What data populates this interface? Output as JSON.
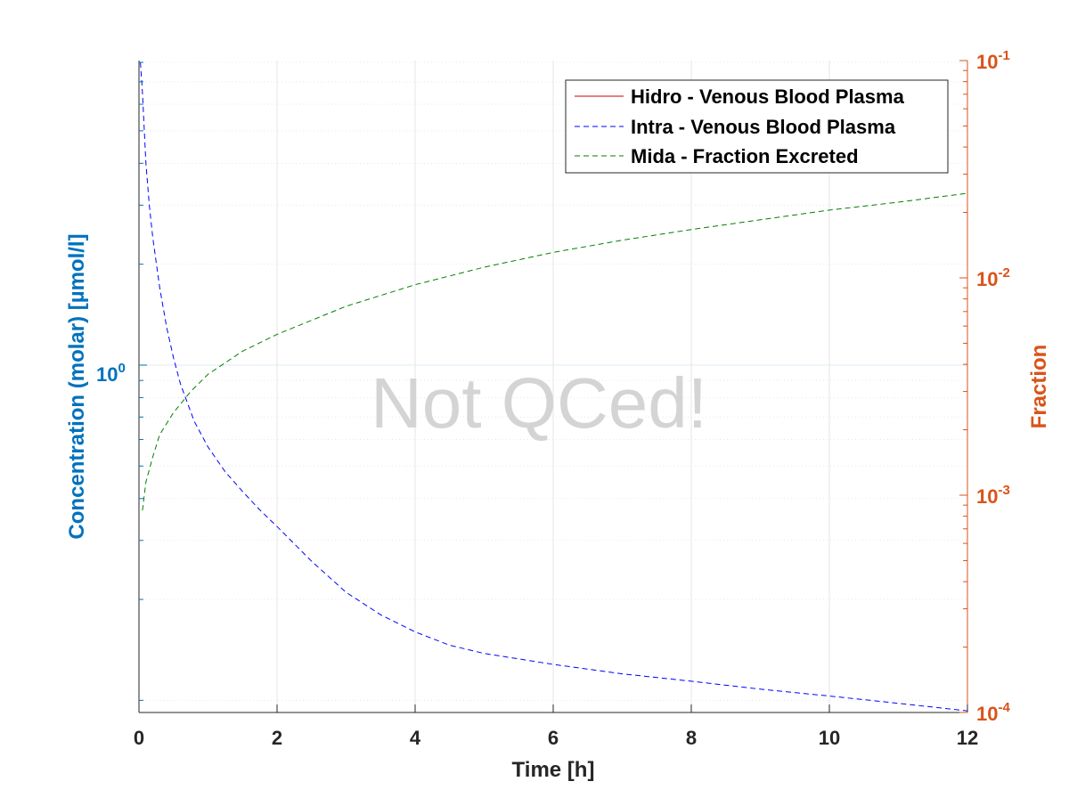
{
  "chart_data": {
    "type": "line",
    "xlabel": "Time [h]",
    "ylabel_left": "Concentration (molar) [µmol/l]",
    "ylabel_right": "Fraction",
    "watermark": "Not QCed!",
    "x_ticks": [
      "0",
      "2",
      "4",
      "6",
      "8",
      "10",
      "12"
    ],
    "xlim": [
      0,
      12
    ],
    "y_left": {
      "scale": "log",
      "lim": [
        0.092,
        8.1
      ],
      "tick_base": "10",
      "tick_exp": "0",
      "tick_value": 1
    },
    "y_right": {
      "scale": "log",
      "lim": [
        0.0001,
        0.1
      ],
      "ticks": [
        {
          "base": "10",
          "exp": "-1",
          "value": 0.1
        },
        {
          "base": "10",
          "exp": "-2",
          "value": 0.01
        },
        {
          "base": "10",
          "exp": "-3",
          "value": 0.001
        },
        {
          "base": "10",
          "exp": "-4",
          "value": 0.0001
        }
      ]
    },
    "grid": true,
    "legend_position": "top-right",
    "colors": {
      "left_axis": "#0072bd",
      "right_axis": "#d95319"
    },
    "series": [
      {
        "name": "Hidro - Venous Blood Plasma",
        "axis": "left",
        "color": "#cc0000",
        "dash": "solid",
        "x": [],
        "y": []
      },
      {
        "name": "Intra - Venous Blood Plasma",
        "axis": "left",
        "color": "#0000ff",
        "dash": "dashed",
        "x": [
          0.02,
          0.05,
          0.1,
          0.15,
          0.2,
          0.3,
          0.4,
          0.5,
          0.6,
          0.8,
          1.0,
          1.25,
          1.5,
          1.75,
          2.0,
          2.5,
          3.0,
          3.5,
          4.0,
          4.5,
          5.0,
          6.0,
          7.0,
          8.0,
          9.0,
          10.0,
          11.0,
          12.0
        ],
        "y": [
          8.0,
          6.5,
          4.0,
          3.0,
          2.4,
          1.7,
          1.3,
          1.05,
          0.88,
          0.68,
          0.57,
          0.48,
          0.42,
          0.37,
          0.33,
          0.26,
          0.21,
          0.18,
          0.16,
          0.146,
          0.138,
          0.128,
          0.12,
          0.114,
          0.108,
          0.103,
          0.098,
          0.093
        ]
      },
      {
        "name": "Mida - Fraction Excreted",
        "axis": "right",
        "color": "#007f00",
        "dash": "dashed",
        "x": [
          0.05,
          0.1,
          0.2,
          0.3,
          0.5,
          0.75,
          1.0,
          1.5,
          2.0,
          3.0,
          4.0,
          5.0,
          6.0,
          7.0,
          8.0,
          9.0,
          10.0,
          11.0,
          12.0
        ],
        "y": [
          0.00085,
          0.00115,
          0.0015,
          0.0019,
          0.0024,
          0.003,
          0.0036,
          0.0046,
          0.0055,
          0.0074,
          0.0093,
          0.0112,
          0.0131,
          0.0149,
          0.0167,
          0.0185,
          0.0205,
          0.0223,
          0.0245
        ]
      }
    ]
  }
}
